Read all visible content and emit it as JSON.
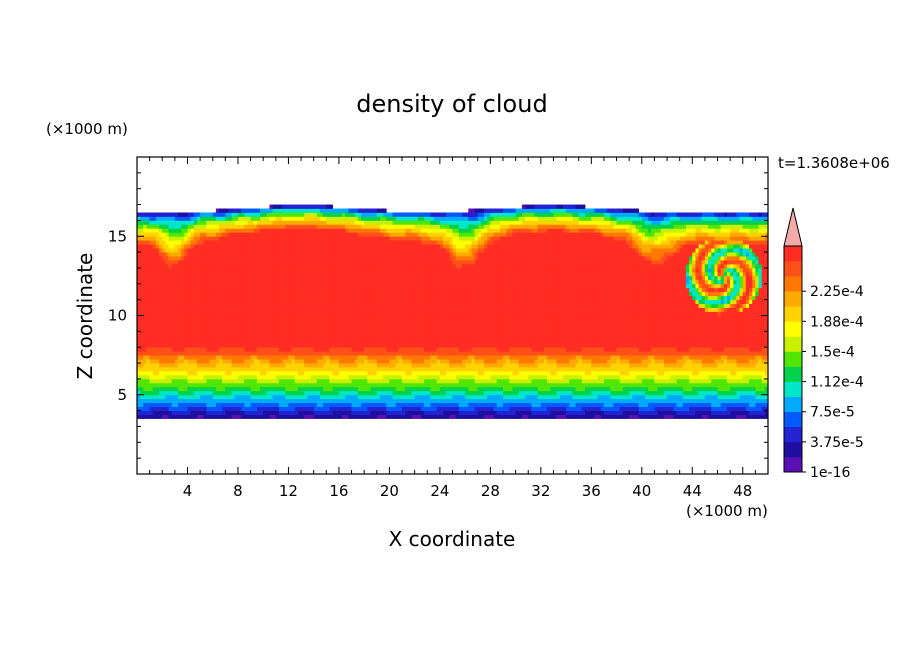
{
  "chart_data": {
    "type": "heatmap",
    "title": "density of cloud",
    "xlabel": "X coordinate",
    "ylabel": "Z coordinate",
    "x_unit": "(×1000 m)",
    "y_unit": "(×1000 m)",
    "time_label": "t=1.3608e+06",
    "xlim": [
      0,
      50
    ],
    "ylim": [
      0,
      20
    ],
    "x_ticks": [
      "4",
      "8",
      "12",
      "16",
      "20",
      "24",
      "28",
      "32",
      "36",
      "40",
      "44",
      "48"
    ],
    "y_ticks": [
      "5",
      "10",
      "15"
    ],
    "colorbar": {
      "labels": [
        "1e-16",
        "3.75e-5",
        "7.5e-5",
        "1.12e-4",
        "1.5e-4",
        "1.88e-4",
        "2.25e-4"
      ],
      "colors": [
        "#5a0fb4",
        "#1e0fa0",
        "#2323d2",
        "#005aff",
        "#00aaff",
        "#00e6c8",
        "#00d24b",
        "#50e600",
        "#c8f000",
        "#ffff00",
        "#ffd200",
        "#ffaa00",
        "#ff7800",
        "#ff5019",
        "#ff2d23",
        "#f5aaaa"
      ],
      "extend": "max"
    },
    "field": {
      "cloud_base_km": 3.5,
      "cloud_top_km": 16.5,
      "core_bottom_km": 8.0,
      "core_top_km": 15.0,
      "domes_center_km": [
        13,
        33
      ],
      "eddy_center_km": [
        46.5,
        12.5
      ]
    }
  }
}
